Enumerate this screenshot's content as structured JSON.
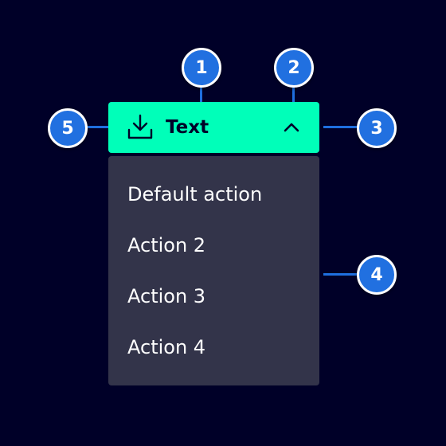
{
  "button": {
    "label": "Text",
    "icon": "download-icon",
    "chevron_icon": "chevron-up-icon",
    "color": "#00ffb9"
  },
  "menu": {
    "items": [
      {
        "label": "Default action"
      },
      {
        "label": "Action 2"
      },
      {
        "label": "Action 3"
      },
      {
        "label": "Action 4"
      }
    ],
    "color": "#33344a"
  },
  "callouts": [
    {
      "number": "1"
    },
    {
      "number": "2"
    },
    {
      "number": "3"
    },
    {
      "number": "4"
    },
    {
      "number": "5"
    }
  ],
  "colors": {
    "background": "#000028",
    "callout": "#2170e0",
    "line": "#1f6fdf"
  }
}
